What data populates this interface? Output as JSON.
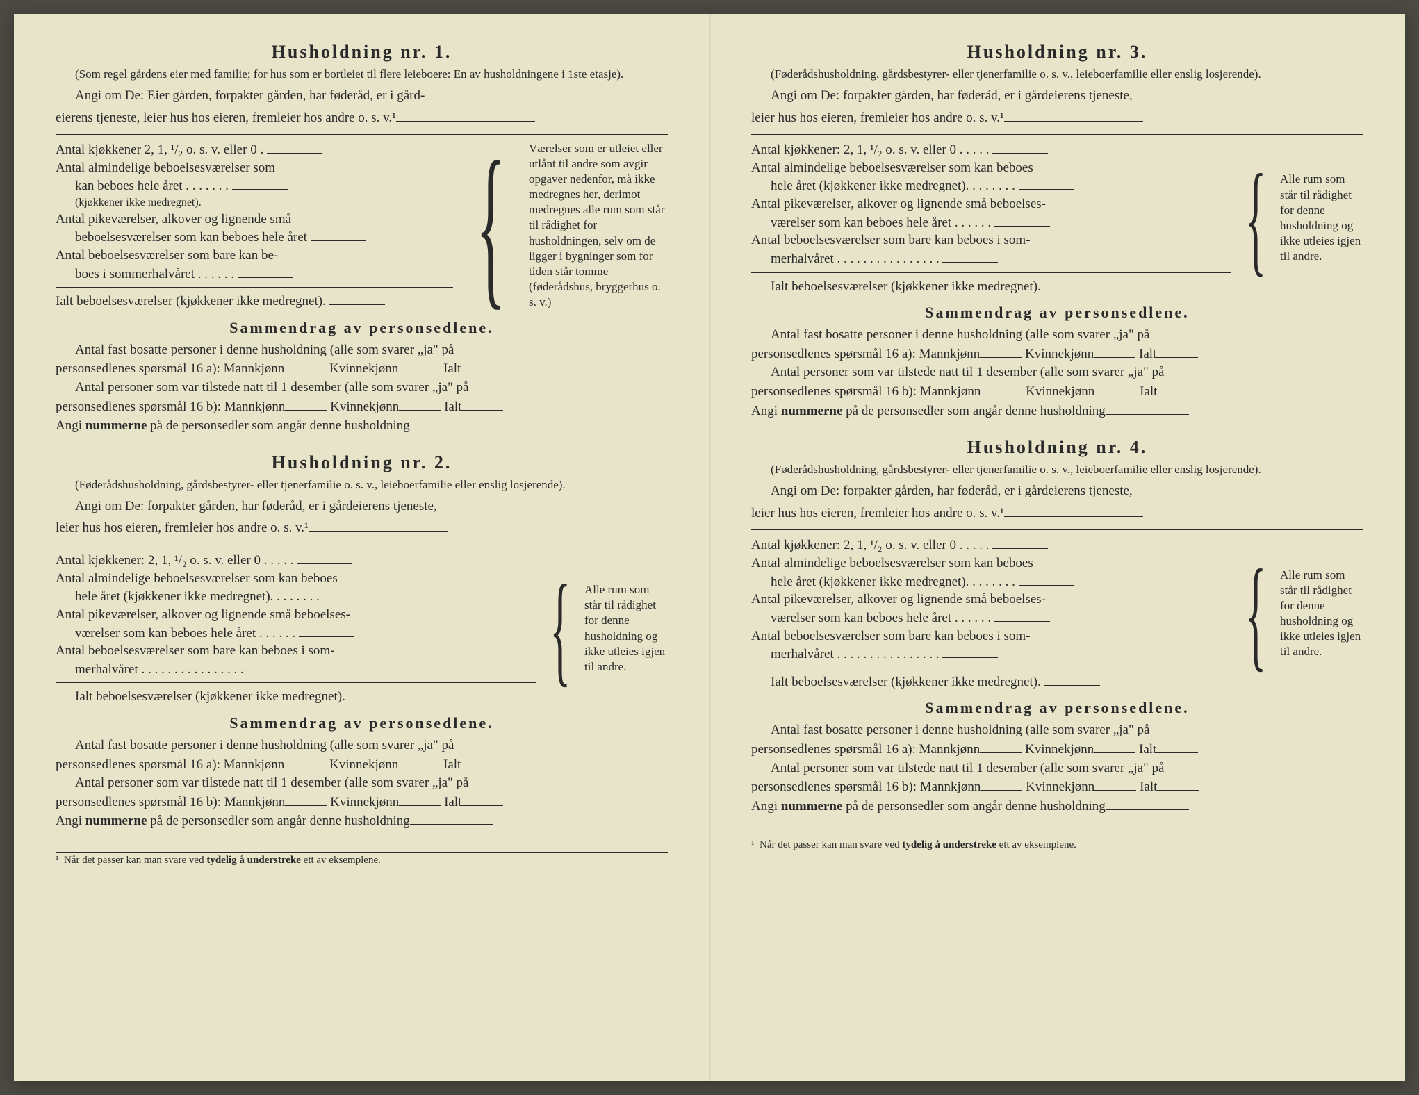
{
  "colors": {
    "paper": "#e8e4ca",
    "ink": "#2a2a2a",
    "backdrop": "#4a4a42"
  },
  "typography": {
    "title_size_pt": 20,
    "body_size_pt": 14,
    "small_size_pt": 12,
    "footnote_size_pt": 11,
    "letter_spacing_title": 3
  },
  "sections": {
    "s1": {
      "title": "Husholdning nr. 1.",
      "paren1": "(Som regel gårdens eier med familie; for hus som er bortleiet til flere leieboere: En av husholdningene i 1ste etasje).",
      "angi1": "Angi om De: Eier gården, forpakter gården, har føderåd, er i gård-",
      "angi2": "eierens tjeneste, leier hus hos eieren, fremleier hos andre o. s. v.¹",
      "room1": "Antal kjøkkener 2, 1, ¹/₂ o. s. v. eller 0  .",
      "room2a": "Antal almindelige beboelsesværelser som",
      "room2b": "kan beboes hele året  .  .  .  .  .  .  .",
      "room2c": "(kjøkkener ikke medregnet).",
      "room3a": "Antal pikeværelser, alkover og lignende små",
      "room3b": "beboelsesværelser som kan beboes hele året",
      "room4a": "Antal beboelsesværelser som bare kan be-",
      "room4b": "boes i sommerhalvåret  .  .  .  .  .  .",
      "room5": "Ialt beboelsesværelser (kjøkkener ikke medregnet).",
      "sidenote": "Værelser som er utleiet eller utlånt til andre som avgir opgaver nedenfor, må ikke medregnes her, derimot medregnes alle rum som står til rådighet for husholdningen, selv om de ligger i bygninger som for tiden står tomme (føderådshus, bryggerhus o. s. v.)"
    },
    "s2": {
      "title": "Husholdning nr. 2.",
      "paren1": "(Føderådshusholdning, gårdsbestyrer- eller tjenerfamilie o. s. v., leieboerfamilie eller enslig losjerende).",
      "angi1": "Angi om De: forpakter gården, har føderåd, er i gårdeierens tjeneste,",
      "angi2": "leier hus hos eieren, fremleier hos andre o. s. v.¹",
      "room1": "Antal kjøkkener: 2, 1, ¹/₂ o. s. v. eller 0  .  .  .  .  .",
      "room2a": "Antal almindelige beboelsesværelser som kan beboes",
      "room2b": "hele året (kjøkkener ikke medregnet).  .  .  .  .  .  .  .",
      "room3a": "Antal pikeværelser, alkover og lignende små beboelses-",
      "room3b": "værelser som kan beboes hele året .  .  .  .  .  .",
      "room4a": "Antal beboelsesværelser som bare kan beboes i som-",
      "room4b": "merhalvåret .  .  .  .  .  .  .  .  .  .  .  .  .  .  .  .",
      "room5": "Ialt beboelsesværelser (kjøkkener ikke medregnet).",
      "sidenote": "Alle rum som står til rådighet for denne husholdning og ikke utleies igjen til andre."
    },
    "s3": {
      "title": "Husholdning nr. 3.",
      "paren1": "(Føderådshusholdning, gårdsbestyrer- eller tjenerfamilie o. s. v., leieboerfamilie eller enslig losjerende).",
      "angi1": "Angi om De: forpakter gården, har føderåd, er i gårdeierens tjeneste,",
      "angi2": "leier hus hos eieren, fremleier hos andre o. s. v.¹",
      "room1": "Antal kjøkkener: 2, 1, ¹/₂ o. s. v. eller 0  .  .  .  .  .",
      "room2a": "Antal almindelige beboelsesværelser som kan beboes",
      "room2b": "hele året (kjøkkener ikke medregnet).  .  .  .  .  .  .  .",
      "room3a": "Antal pikeværelser, alkover og lignende små beboelses-",
      "room3b": "værelser som kan beboes hele året .  .  .  .  .  .",
      "room4a": "Antal beboelsesværelser som bare kan beboes i som-",
      "room4b": "merhalvåret .  .  .  .  .  .  .  .  .  .  .  .  .  .  .  .",
      "room5": "Ialt beboelsesværelser (kjøkkener ikke medregnet).",
      "sidenote": "Alle rum som står til rådighet for denne husholdning og ikke utleies igjen til andre."
    },
    "s4": {
      "title": "Husholdning nr. 4.",
      "paren1": "(Føderådshusholdning, gårdsbestyrer- eller tjenerfamilie o. s. v., leieboerfamilie eller enslig losjerende).",
      "angi1": "Angi om De: forpakter gården, har føderåd, er i gårdeierens tjeneste,",
      "angi2": "leier hus hos eieren, fremleier hos andre o. s. v.¹",
      "room1": "Antal kjøkkener: 2, 1, ¹/₂ o. s. v. eller 0  .  .  .  .  .",
      "room2a": "Antal almindelige beboelsesværelser som kan beboes",
      "room2b": "hele året (kjøkkener ikke medregnet).  .  .  .  .  .  .  .",
      "room3a": "Antal pikeværelser, alkover og lignende små beboelses-",
      "room3b": "værelser som kan beboes hele året .  .  .  .  .  .",
      "room4a": "Antal beboelsesværelser som bare kan beboes i som-",
      "room4b": "merhalvåret .  .  .  .  .  .  .  .  .  .  .  .  .  .  .  .",
      "room5": "Ialt beboelsesværelser (kjøkkener ikke medregnet).",
      "sidenote": "Alle rum som står til rådighet for denne husholdning og ikke utleies igjen til andre."
    }
  },
  "summary": {
    "heading": "Sammendrag av personsedlene.",
    "line1a": "Antal fast bosatte personer i denne husholdning (alle som svarer „ja\" på",
    "line1b_prefix": "personsedlenes spørsmål 16 a): Mannkjønn",
    "kv_label": "Kvinnekjønn",
    "ialt_label": "Ialt",
    "line2a": "Antal personer som var tilstede natt til 1 desember (alle som svarer „ja\" på",
    "line2b_prefix": "personsedlenes spørsmål 16 b): Mannkjønn",
    "line3_prefix": "Angi",
    "line3_bold": "nummerne",
    "line3_suffix": "på de personsedler som angår denne husholdning"
  },
  "footnote": {
    "marker": "¹",
    "text_prefix": "Når det passer kan man svare ved",
    "text_bold": "tydelig å understreke",
    "text_suffix": "ett av eksemplene."
  }
}
